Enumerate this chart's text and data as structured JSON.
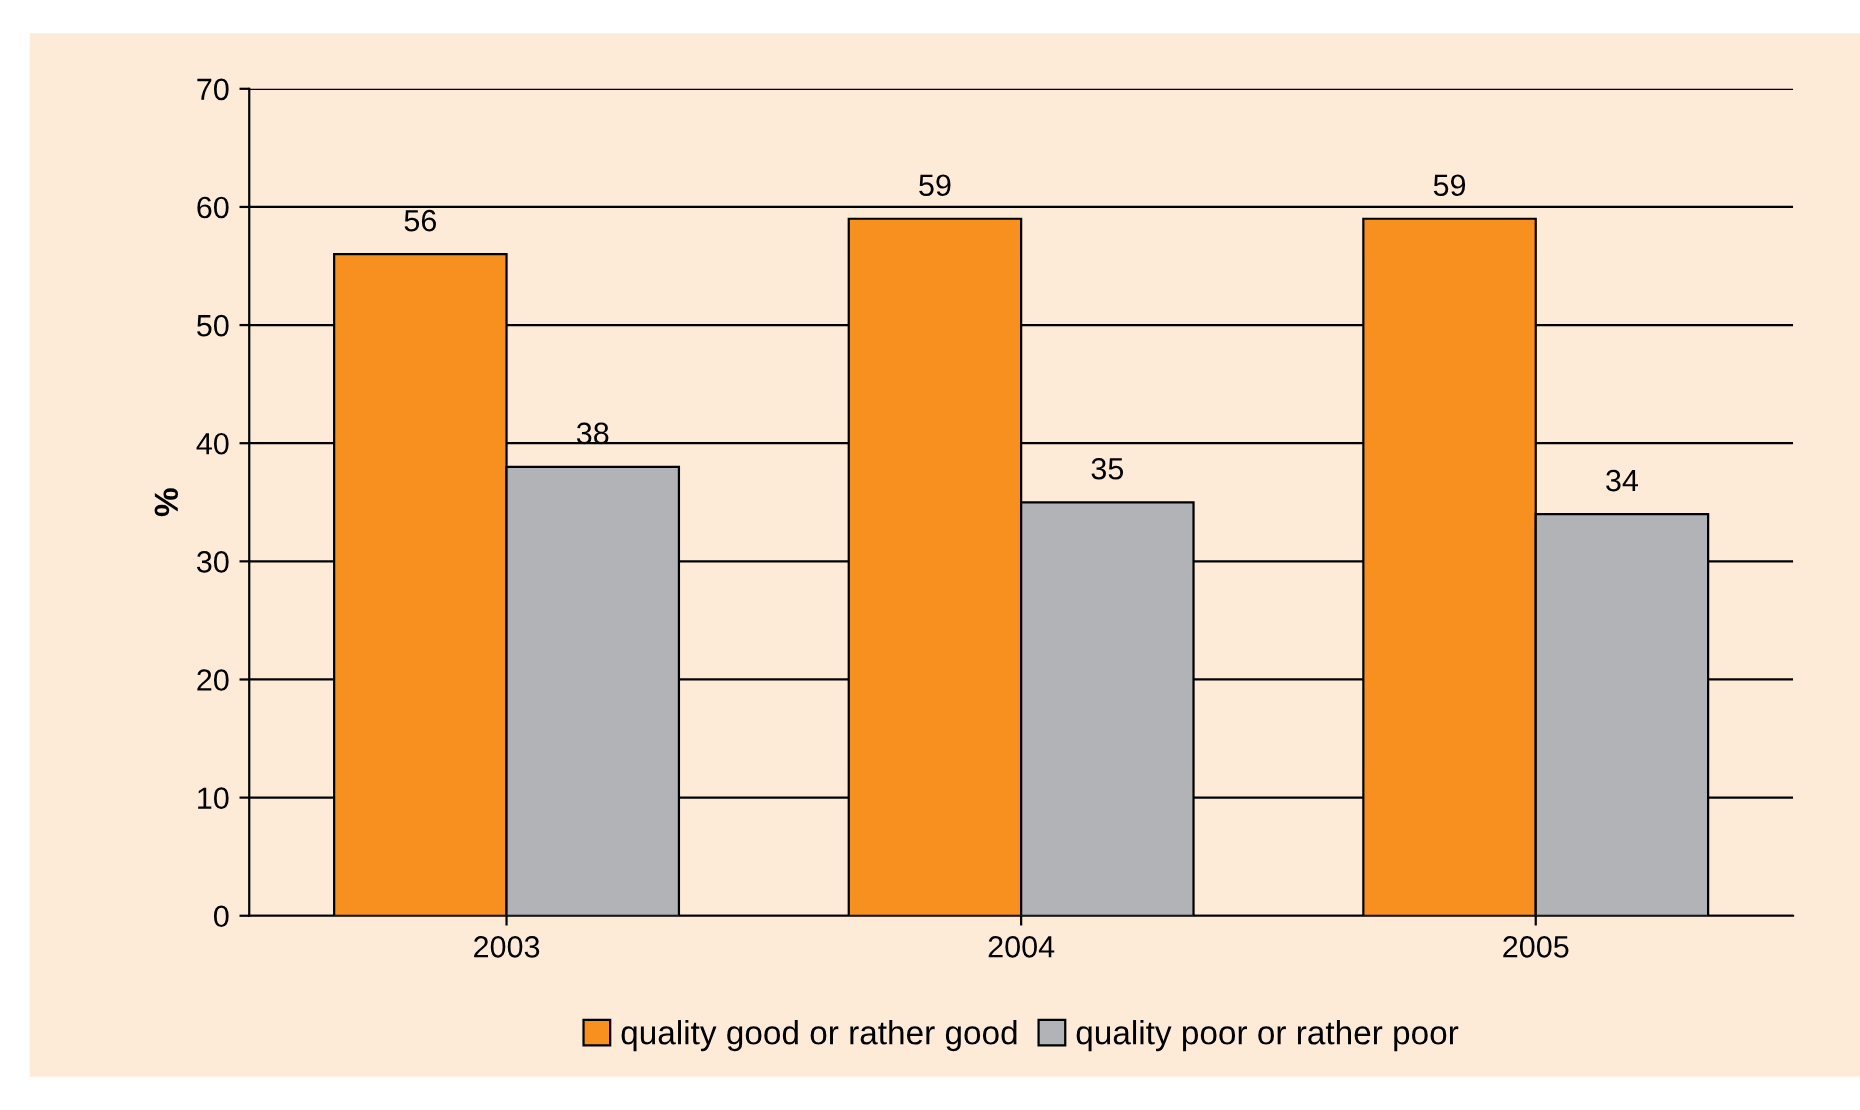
{
  "chart_data": {
    "type": "bar",
    "categories": [
      "2003",
      "2004",
      "2005"
    ],
    "ylabel": "%",
    "series": [
      {
        "name": "quality good or rather good",
        "color": "#f7901e",
        "values": [
          56,
          59,
          59
        ]
      },
      {
        "name": "quality poor or rather poor",
        "color": "#b2b3b6",
        "values": [
          38,
          35,
          34
        ]
      }
    ],
    "ylim": [
      0,
      70
    ],
    "yticks": [
      0,
      10,
      20,
      30,
      40,
      50,
      60,
      70
    ],
    "grid": "y",
    "legend": "bottom",
    "data_labels": true
  }
}
